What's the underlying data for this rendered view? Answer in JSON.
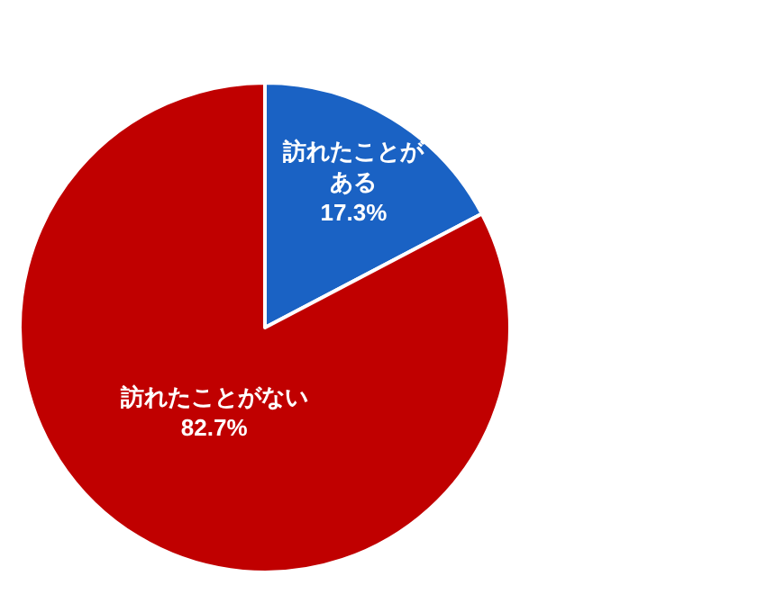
{
  "chart_data": {
    "type": "pie",
    "categories": [
      "訪れたことがある",
      "訪れたことがない"
    ],
    "values": [
      17.3,
      82.7
    ],
    "colors": [
      "#1a62c4",
      "#c00000"
    ],
    "value_labels": [
      "17.3%",
      "82.7%"
    ]
  }
}
